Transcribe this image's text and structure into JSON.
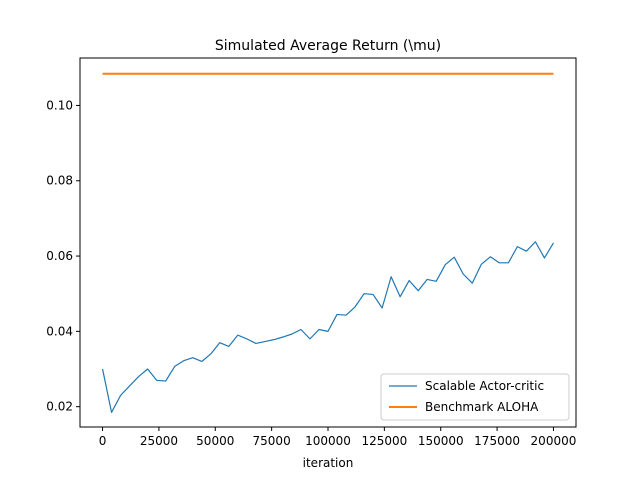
{
  "chart_data": {
    "type": "line",
    "title": "Simulated Average Return (\\mu)",
    "xlabel": "iteration",
    "ylabel": "",
    "xlim": [
      -10000,
      210000
    ],
    "ylim": [
      0.0146,
      0.1126
    ],
    "x_ticks": [
      0,
      25000,
      50000,
      75000,
      100000,
      125000,
      150000,
      175000,
      200000
    ],
    "x_tick_labels": [
      "0",
      "25000",
      "50000",
      "75000",
      "100000",
      "125000",
      "150000",
      "175000",
      "200000"
    ],
    "y_ticks": [
      0.02,
      0.04,
      0.06,
      0.08,
      0.1
    ],
    "y_tick_labels": [
      "0.02",
      "0.04",
      "0.06",
      "0.08",
      "0.10"
    ],
    "grid": false,
    "legend_position": "bottom-right",
    "series": [
      {
        "name": "Scalable Actor-critic",
        "color": "#1f77b4",
        "x": [
          0,
          4000,
          8000,
          12000,
          16000,
          20000,
          24000,
          28000,
          32000,
          36000,
          40000,
          44000,
          48000,
          52000,
          56000,
          60000,
          64000,
          68000,
          72000,
          76000,
          80000,
          84000,
          88000,
          92000,
          96000,
          100000,
          104000,
          108000,
          112000,
          116000,
          120000,
          124000,
          128000,
          132000,
          136000,
          140000,
          144000,
          148000,
          152000,
          156000,
          160000,
          164000,
          168000,
          172000,
          176000,
          180000,
          184000,
          188000,
          192000,
          196000,
          200000
        ],
        "y": [
          0.03,
          0.0185,
          0.023,
          0.0255,
          0.028,
          0.03,
          0.027,
          0.0268,
          0.0307,
          0.0322,
          0.033,
          0.032,
          0.034,
          0.037,
          0.036,
          0.039,
          0.038,
          0.0368,
          0.0373,
          0.0378,
          0.0385,
          0.0393,
          0.0405,
          0.038,
          0.0405,
          0.04,
          0.0445,
          0.0443,
          0.0465,
          0.05,
          0.0498,
          0.0462,
          0.0545,
          0.0492,
          0.0535,
          0.0508,
          0.0538,
          0.0533,
          0.0577,
          0.0597,
          0.0552,
          0.0528,
          0.0578,
          0.0598,
          0.0582,
          0.0582,
          0.0625,
          0.0613,
          0.0638,
          0.0595,
          0.0635
        ]
      },
      {
        "name": "Benchmark ALOHA",
        "color": "#ff7f0e",
        "x": [
          0,
          200000
        ],
        "y": [
          0.1084,
          0.1084
        ]
      }
    ]
  }
}
